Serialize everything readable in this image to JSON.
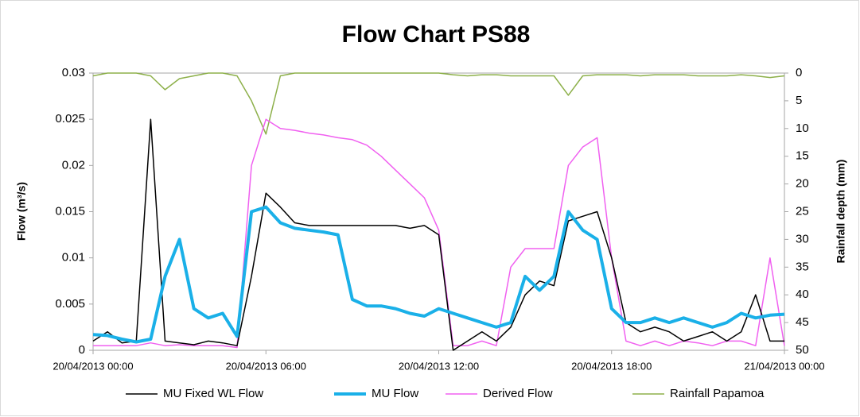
{
  "chart_data": {
    "type": "line",
    "title": "Flow Chart PS88",
    "ylabel": "Flow (m³/s)",
    "y2label": "Rainfall depth (mm)",
    "x": [
      "20/04/2013 00:00",
      "20/04/2013 00:30",
      "20/04/2013 01:00",
      "20/04/2013 01:30",
      "20/04/2013 02:00",
      "20/04/2013 02:30",
      "20/04/2013 03:00",
      "20/04/2013 03:30",
      "20/04/2013 04:00",
      "20/04/2013 04:30",
      "20/04/2013 05:00",
      "20/04/2013 05:30",
      "20/04/2013 06:00",
      "20/04/2013 06:30",
      "20/04/2013 07:00",
      "20/04/2013 07:30",
      "20/04/2013 08:00",
      "20/04/2013 08:30",
      "20/04/2013 09:00",
      "20/04/2013 09:30",
      "20/04/2013 10:00",
      "20/04/2013 10:30",
      "20/04/2013 11:00",
      "20/04/2013 11:30",
      "20/04/2013 12:00",
      "20/04/2013 12:30",
      "20/04/2013 13:00",
      "20/04/2013 13:30",
      "20/04/2013 14:00",
      "20/04/2013 14:30",
      "20/04/2013 15:00",
      "20/04/2013 15:30",
      "20/04/2013 16:00",
      "20/04/2013 16:30",
      "20/04/2013 17:00",
      "20/04/2013 17:30",
      "20/04/2013 18:00",
      "20/04/2013 18:30",
      "20/04/2013 19:00",
      "20/04/2013 19:30",
      "20/04/2013 20:00",
      "20/04/2013 20:30",
      "20/04/2013 21:00",
      "20/04/2013 21:30",
      "20/04/2013 22:00",
      "20/04/2013 22:30",
      "20/04/2013 23:00",
      "20/04/2013 23:30",
      "21/04/2013 00:00"
    ],
    "xlim": [
      "20/04/2013 00:00",
      "21/04/2013 00:00"
    ],
    "xticks": [
      "20/04/2013 00:00",
      "20/04/2013 06:00",
      "20/04/2013 12:00",
      "20/04/2013 18:00",
      "21/04/2013 00:00"
    ],
    "ylim": [
      0,
      0.03
    ],
    "yticks": [
      0,
      0.005,
      0.01,
      0.015,
      0.02,
      0.025,
      0.03
    ],
    "y2lim": [
      50,
      0
    ],
    "y2ticks": [
      0,
      5,
      10,
      15,
      20,
      25,
      30,
      35,
      40,
      45,
      50
    ],
    "series": [
      {
        "name": "MU Fixed WL Flow",
        "color": "#000000",
        "values": [
          0.001,
          0.002,
          0.0008,
          0.001,
          0.025,
          0.001,
          0.0008,
          0.0006,
          0.001,
          0.0008,
          0.0005,
          0.008,
          0.017,
          0.0155,
          0.0138,
          0.0135,
          0.0135,
          0.0135,
          0.0135,
          0.0135,
          0.0135,
          0.0135,
          0.0132,
          0.0135,
          0.0125,
          0,
          0.001,
          0.002,
          0.001,
          0.0025,
          0.006,
          0.0075,
          0.007,
          0.014,
          0.0145,
          0.015,
          0.01,
          0.003,
          0.002,
          0.0025,
          0.002,
          0.001,
          0.0015,
          0.002,
          0.001,
          0.002,
          0.006,
          0.001,
          0.001
        ]
      },
      {
        "name": "MU Flow",
        "color": "#1ab0e8",
        "values": [
          0.0017,
          0.0016,
          0.0012,
          0.0009,
          0.0012,
          0.008,
          0.012,
          0.0045,
          0.0035,
          0.004,
          0.0015,
          0.015,
          0.0155,
          0.0138,
          0.0132,
          0.013,
          0.0128,
          0.0125,
          0.0055,
          0.0048,
          0.0048,
          0.0045,
          0.004,
          0.0037,
          0.0045,
          0.004,
          0.0035,
          0.003,
          0.0025,
          0.003,
          0.008,
          0.0065,
          0.008,
          0.015,
          0.013,
          0.012,
          0.0045,
          0.003,
          0.003,
          0.0035,
          0.003,
          0.0035,
          0.003,
          0.0025,
          0.003,
          0.004,
          0.0035,
          0.0038,
          0.0039
        ]
      },
      {
        "name": "Derived Flow",
        "color": "#f060f0",
        "values": [
          0.0005,
          0.0005,
          0.0005,
          0.0005,
          0.0008,
          0.0005,
          0.0006,
          0.0005,
          0.0005,
          0.0005,
          0.0003,
          0.02,
          0.025,
          0.024,
          0.0238,
          0.0235,
          0.0233,
          0.023,
          0.0228,
          0.0222,
          0.021,
          0.0195,
          0.018,
          0.0165,
          0.013,
          0.0005,
          0.0005,
          0.001,
          0.0005,
          0.009,
          0.011,
          0.011,
          0.011,
          0.02,
          0.022,
          0.023,
          0.01,
          0.001,
          0.0005,
          0.001,
          0.0005,
          0.001,
          0.0008,
          0.0005,
          0.001,
          0.001,
          0.0005,
          0.01,
          0.0005
        ]
      },
      {
        "name": "Rainfall Papamoa",
        "color": "#8db04a",
        "axis": "y2",
        "values": [
          0.5,
          0,
          0,
          0,
          0.5,
          3,
          1,
          0.5,
          0,
          0,
          0.5,
          5,
          11,
          0.5,
          0,
          0,
          0,
          0,
          0,
          0,
          0,
          0,
          0,
          0,
          0,
          0.3,
          0.5,
          0.3,
          0.3,
          0.5,
          0.5,
          0.5,
          0.5,
          4,
          0.5,
          0.3,
          0.3,
          0.3,
          0.5,
          0.3,
          0.3,
          0.3,
          0.5,
          0.5,
          0.5,
          0.3,
          0.5,
          0.8,
          0.5
        ]
      }
    ]
  }
}
